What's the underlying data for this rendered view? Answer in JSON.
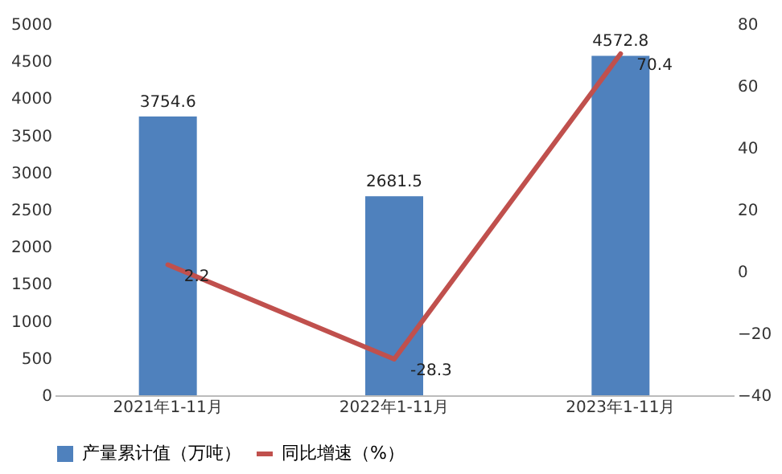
{
  "chart_data": {
    "type": "bar",
    "categories": [
      "2021年1-11月",
      "2022年1-11月",
      "2023年1-11月"
    ],
    "series": [
      {
        "name": "产量累计值（万吨）",
        "color": "#4f81bd",
        "values": [
          3754.6,
          2681.5,
          4572.8
        ]
      },
      {
        "name": "同比增速（%）",
        "type": "line",
        "axis": "y2",
        "color": "#c0504d",
        "values": [
          2.2,
          -28.3,
          70.4
        ]
      }
    ],
    "ylim": [
      0,
      5000
    ],
    "yticks": [
      0,
      500,
      1000,
      1500,
      2000,
      2500,
      3000,
      3500,
      4000,
      4500,
      5000
    ],
    "y2lim": [
      -40,
      80
    ],
    "y2ticks": [
      -40,
      -20,
      0,
      20,
      40,
      60,
      80
    ],
    "legend": "bottom",
    "data_labels": true
  }
}
